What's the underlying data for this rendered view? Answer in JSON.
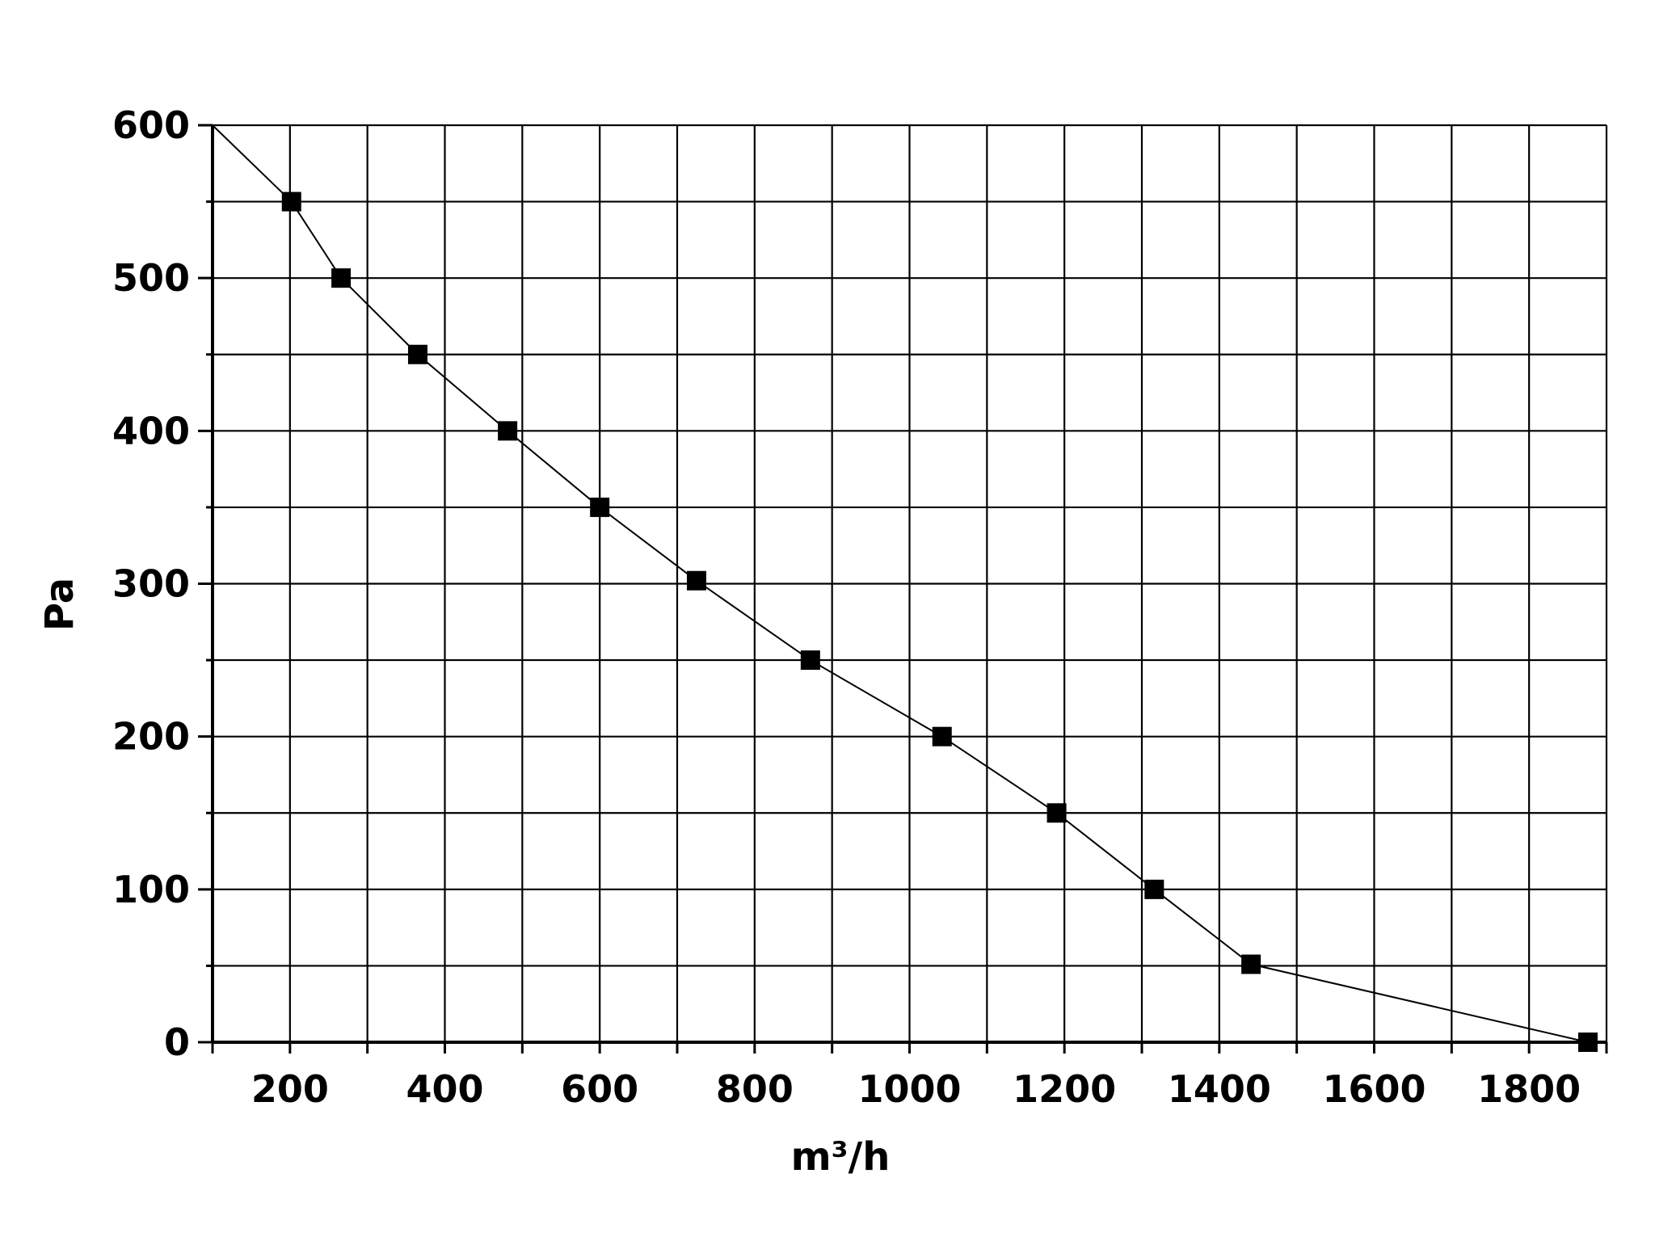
{
  "chart_data": {
    "type": "line",
    "title": "",
    "xlabel": "m³/h",
    "ylabel": "Pa",
    "xlim": [
      100,
      1900
    ],
    "ylim": [
      0,
      600
    ],
    "x_ticks": [
      200,
      400,
      600,
      800,
      1000,
      1200,
      1400,
      1600,
      1800
    ],
    "x_tick_labels": [
      "200",
      "400",
      "600",
      "800",
      "1000",
      "1200",
      "1400",
      "1600",
      "1800"
    ],
    "y_ticks": [
      0,
      100,
      200,
      300,
      400,
      500,
      600
    ],
    "y_tick_labels": [
      "0",
      "100",
      "200",
      "300",
      "400",
      "500",
      "600"
    ],
    "grid": true,
    "legend": "none",
    "colors": {
      "line": "#000000",
      "marker": "#000000",
      "grid": "#000000"
    },
    "series": [
      {
        "marker": "square",
        "x": [
          100,
          202,
          266,
          365,
          481,
          600,
          725,
          872,
          1042,
          1190,
          1316,
          1441,
          1876
        ],
        "y": [
          600,
          550,
          500,
          450,
          400,
          350,
          302,
          250,
          200,
          150,
          100,
          51,
          0
        ],
        "marked": [
          false,
          true,
          true,
          true,
          true,
          true,
          true,
          true,
          true,
          true,
          true,
          true,
          true
        ]
      }
    ]
  }
}
